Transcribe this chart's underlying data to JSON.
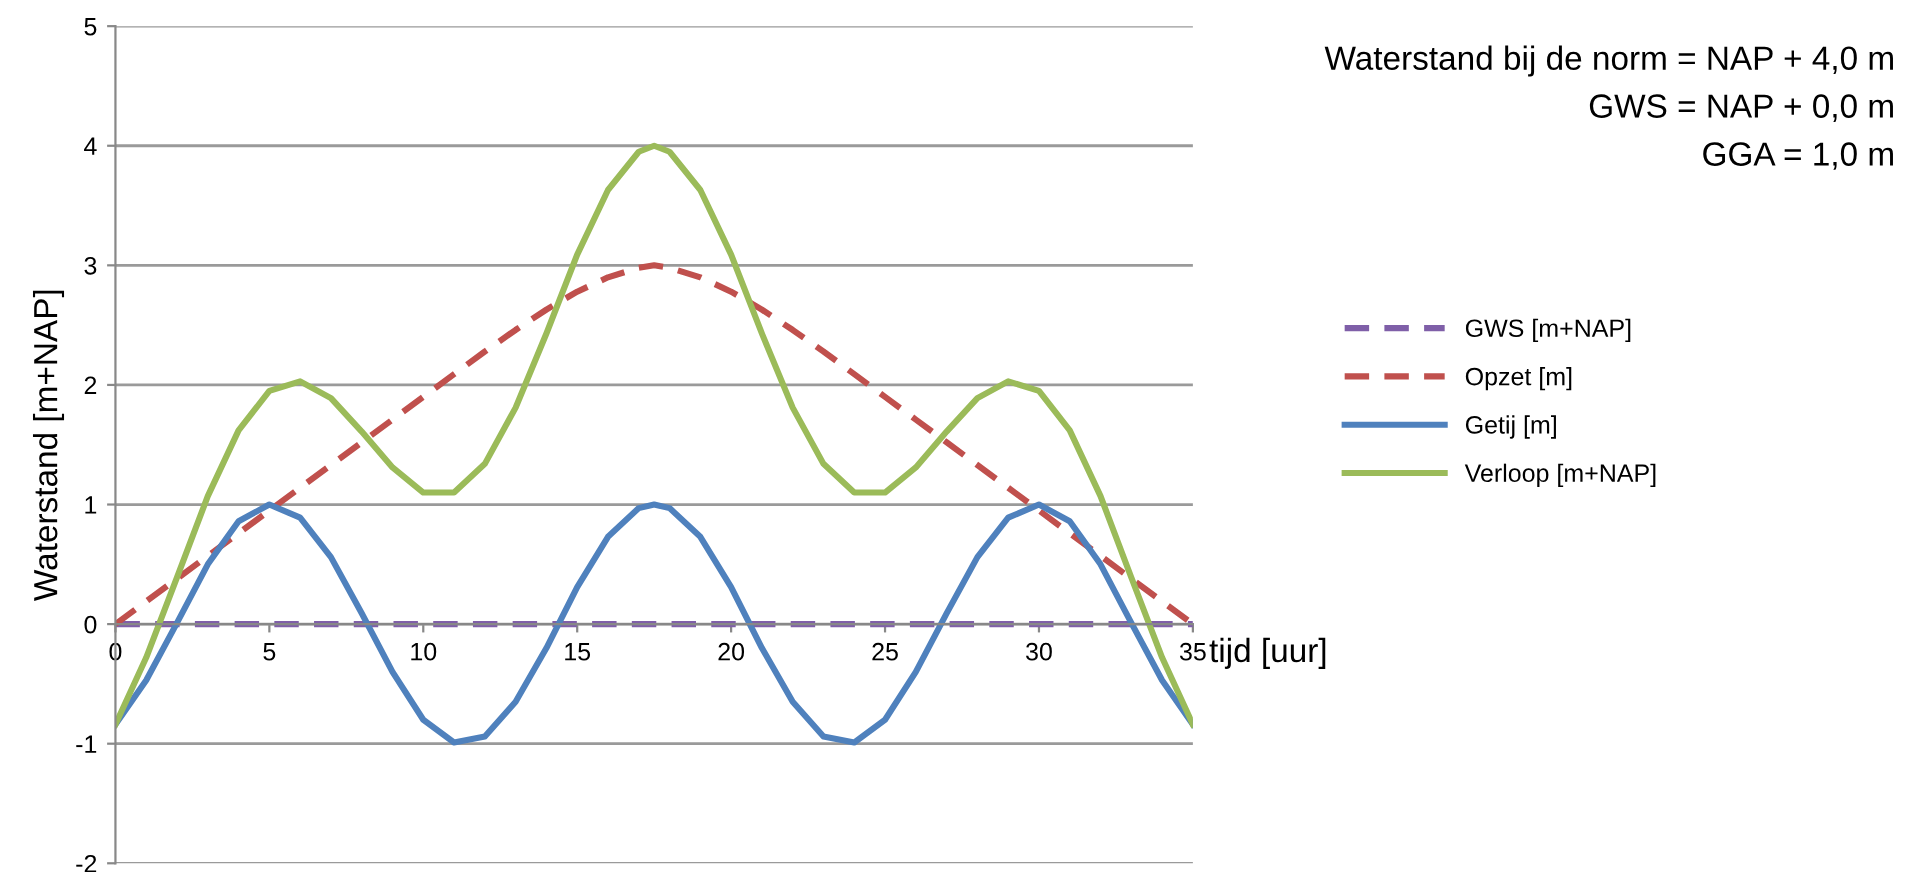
{
  "chart_data": {
    "type": "line",
    "ylabel": "Waterstand [m+NAP]",
    "xlabel": "tijd [uur]",
    "annotations": [
      "Waterstand bij de norm = NAP + 4,0 m",
      "GWS = NAP + 0,0 m",
      "GGA = 1,0 m"
    ],
    "x": [
      0,
      1,
      2,
      3,
      4,
      5,
      6,
      7,
      8,
      9,
      10,
      11,
      12,
      13,
      14,
      15,
      16,
      17,
      17.5,
      18,
      19,
      20,
      21,
      22,
      23,
      24,
      25,
      26,
      27,
      28,
      29,
      30,
      31,
      32,
      33,
      34,
      35
    ],
    "xlim": [
      0,
      35
    ],
    "xticks": [
      0,
      5,
      10,
      15,
      20,
      25,
      30,
      35
    ],
    "ylim": [
      -2,
      5
    ],
    "yticks": [
      -2,
      -1,
      0,
      1,
      2,
      3,
      4,
      5
    ],
    "grid": "y",
    "legend": "right",
    "marker": "none",
    "series": [
      {
        "name": "GWS [m+NAP]",
        "color": "#7f5fa8",
        "line_style": "dashed",
        "values": [
          0,
          0,
          0,
          0,
          0,
          0,
          0,
          0,
          0,
          0,
          0,
          0,
          0,
          0,
          0,
          0,
          0,
          0,
          0,
          0,
          0,
          0,
          0,
          0,
          0,
          0,
          0,
          0,
          0,
          0,
          0,
          0,
          0,
          0,
          0,
          0,
          0
        ]
      },
      {
        "name": "Opzet [m]",
        "color": "#c0504d",
        "line_style": "dashed",
        "values": [
          0,
          0.19,
          0.38,
          0.57,
          0.76,
          0.95,
          1.14,
          1.33,
          1.52,
          1.71,
          1.9,
          2.09,
          2.28,
          2.46,
          2.63,
          2.78,
          2.9,
          2.98,
          3,
          2.98,
          2.9,
          2.78,
          2.63,
          2.46,
          2.28,
          2.09,
          1.9,
          1.71,
          1.52,
          1.33,
          1.14,
          0.95,
          0.76,
          0.57,
          0.38,
          0.19,
          0
        ]
      },
      {
        "name": "Getij [m]",
        "color": "#4f81bd",
        "line_style": "solid",
        "values": [
          -0.84,
          -0.47,
          0.01,
          0.5,
          0.86,
          1.0,
          0.89,
          0.56,
          0.09,
          -0.4,
          -0.8,
          -0.99,
          -0.94,
          -0.65,
          -0.2,
          0.31,
          0.73,
          0.97,
          1,
          0.97,
          0.73,
          0.31,
          -0.2,
          -0.65,
          -0.94,
          -0.99,
          -0.8,
          -0.4,
          0.09,
          0.56,
          0.89,
          1.0,
          0.86,
          0.5,
          0.01,
          -0.47,
          -0.84
        ]
      },
      {
        "name": "Verloop [m+NAP]",
        "color": "#9bbb59",
        "line_style": "solid",
        "values": [
          -0.84,
          -0.28,
          0.39,
          1.07,
          1.62,
          1.95,
          2.03,
          1.89,
          1.61,
          1.31,
          1.1,
          1.1,
          1.34,
          1.81,
          2.43,
          3.09,
          3.63,
          3.95,
          4,
          3.95,
          3.63,
          3.09,
          2.43,
          1.81,
          1.34,
          1.1,
          1.1,
          1.31,
          1.61,
          1.89,
          2.03,
          1.95,
          1.62,
          1.07,
          0.39,
          -0.28,
          -0.84
        ]
      }
    ]
  }
}
